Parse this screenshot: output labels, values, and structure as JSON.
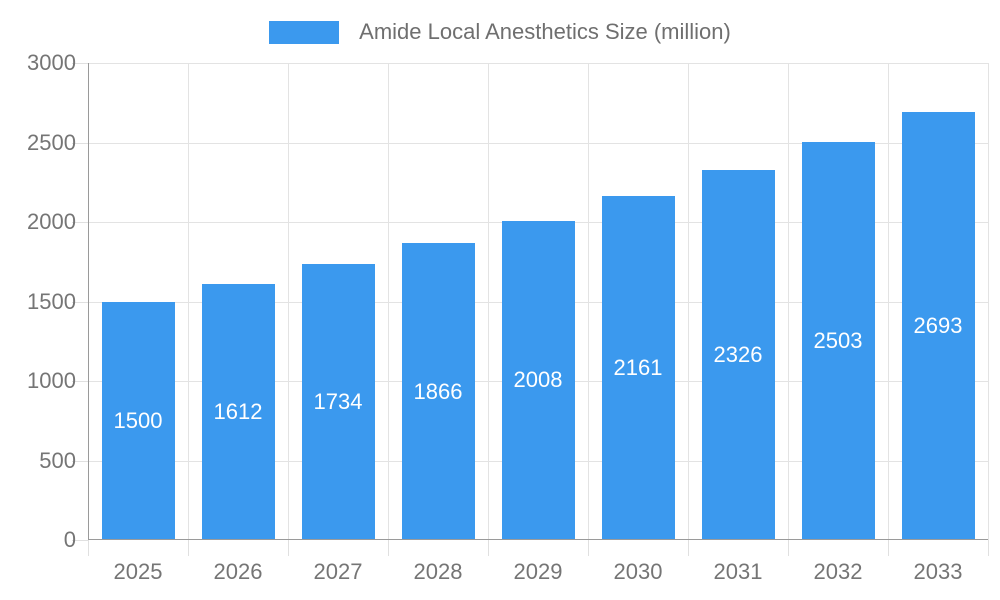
{
  "chart_data": {
    "type": "bar",
    "series_name": "Amide Local Anesthetics Size (million)",
    "categories": [
      "2025",
      "2026",
      "2027",
      "2028",
      "2029",
      "2030",
      "2031",
      "2032",
      "2033"
    ],
    "values": [
      1500,
      1612,
      1734,
      1866,
      2008,
      2161,
      2326,
      2503,
      2693
    ],
    "title": "",
    "xlabel": "",
    "ylabel": "",
    "ylim": [
      0,
      3000
    ],
    "yticks": [
      0,
      500,
      1000,
      1500,
      2000,
      2500,
      3000
    ],
    "grid": "on",
    "legend_position": "top-center",
    "bar_color": "#3B99EE",
    "bar_label_color": "#FFFFFF",
    "axis_label_color": "#757575"
  }
}
